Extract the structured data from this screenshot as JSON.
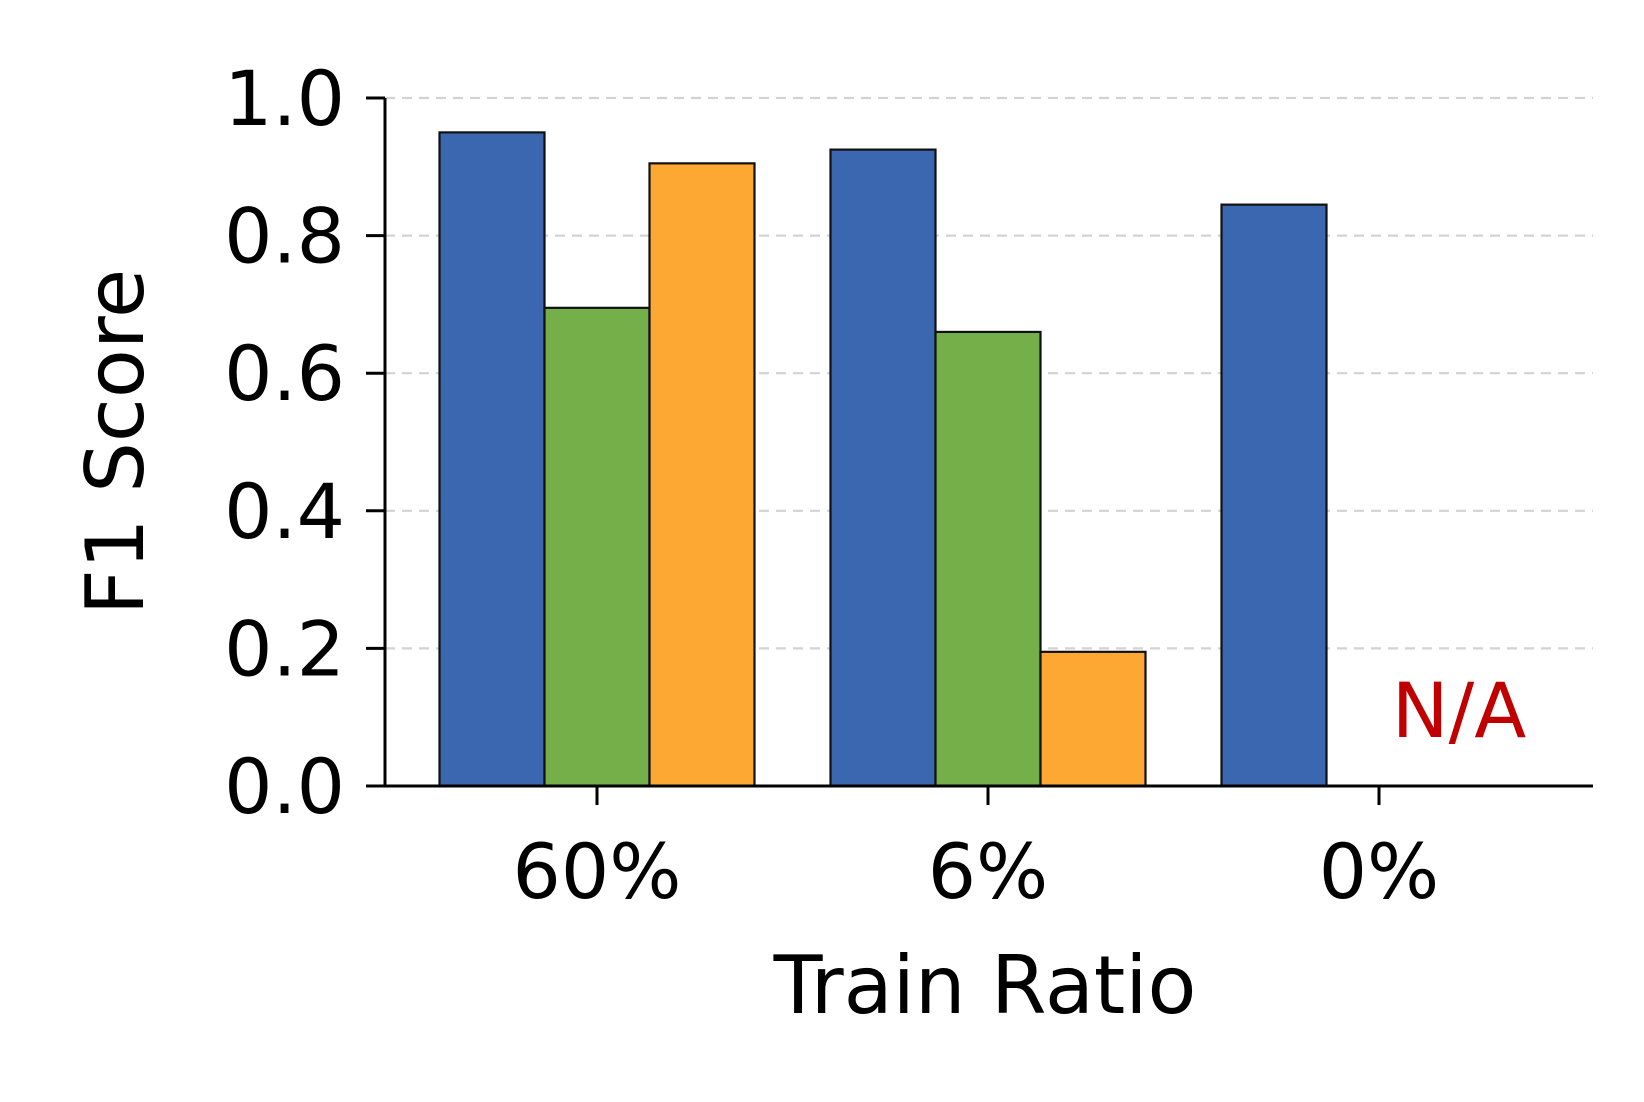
{
  "chart_data": {
    "type": "bar",
    "categories": [
      "60%",
      "6%",
      "0%"
    ],
    "series": [
      {
        "color": "#3a67b0",
        "values": [
          0.95,
          0.925,
          0.845
        ]
      },
      {
        "color": "#74af4a",
        "values": [
          0.695,
          0.66,
          null
        ]
      },
      {
        "color": "#fca833",
        "values": [
          0.905,
          0.195,
          null
        ]
      }
    ],
    "xlabel": "Train Ratio",
    "ylabel": "F1 Score",
    "ylim": [
      0,
      1.0
    ],
    "yticks": [
      "0.0",
      "0.2",
      "0.4",
      "0.6",
      "0.8",
      "1.0"
    ],
    "grid": "horizontal dashed",
    "annotations": [
      {
        "text": "N/A",
        "color": "#c00000",
        "category": "0%"
      }
    ]
  }
}
